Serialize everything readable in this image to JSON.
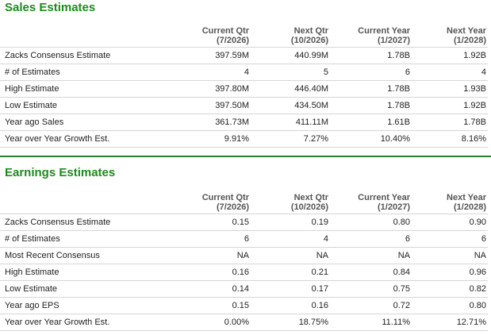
{
  "sales": {
    "title": "Sales Estimates",
    "columns": [
      {
        "line1": "Current Qtr",
        "line2": "(7/2026)"
      },
      {
        "line1": "Next Qtr",
        "line2": "(10/2026)"
      },
      {
        "line1": "Current Year",
        "line2": "(1/2027)"
      },
      {
        "line1": "Next Year",
        "line2": "(1/2028)"
      }
    ],
    "rows": [
      {
        "label": "Zacks Consensus Estimate",
        "values": [
          "397.59M",
          "440.99M",
          "1.78B",
          "1.92B"
        ]
      },
      {
        "label": "# of Estimates",
        "values": [
          "4",
          "5",
          "6",
          "4"
        ]
      },
      {
        "label": "High Estimate",
        "values": [
          "397.80M",
          "446.40M",
          "1.78B",
          "1.93B"
        ]
      },
      {
        "label": "Low Estimate",
        "values": [
          "397.50M",
          "434.50M",
          "1.78B",
          "1.92B"
        ]
      },
      {
        "label": "Year ago Sales",
        "values": [
          "361.73M",
          "411.11M",
          "1.61B",
          "1.78B"
        ]
      },
      {
        "label": "Year over Year Growth Est.",
        "values": [
          "9.91%",
          "7.27%",
          "10.40%",
          "8.16%"
        ]
      }
    ]
  },
  "earnings": {
    "title": "Earnings Estimates",
    "columns": [
      {
        "line1": "Current Qtr",
        "line2": "(7/2026)"
      },
      {
        "line1": "Next Qtr",
        "line2": "(10/2026)"
      },
      {
        "line1": "Current Year",
        "line2": "(1/2027)"
      },
      {
        "line1": "Next Year",
        "line2": "(1/2028)"
      }
    ],
    "rows": [
      {
        "label": "Zacks Consensus Estimate",
        "values": [
          "0.15",
          "0.19",
          "0.80",
          "0.90"
        ]
      },
      {
        "label": "# of Estimates",
        "values": [
          "6",
          "4",
          "6",
          "6"
        ]
      },
      {
        "label": "Most Recent Consensus",
        "values": [
          "NA",
          "NA",
          "NA",
          "NA"
        ]
      },
      {
        "label": "High Estimate",
        "values": [
          "0.16",
          "0.21",
          "0.84",
          "0.96"
        ]
      },
      {
        "label": "Low Estimate",
        "values": [
          "0.14",
          "0.17",
          "0.75",
          "0.82"
        ]
      },
      {
        "label": "Year ago EPS",
        "values": [
          "0.15",
          "0.16",
          "0.72",
          "0.80"
        ]
      },
      {
        "label": "Year over Year Growth Est.",
        "values": [
          "0.00%",
          "18.75%",
          "11.11%",
          "12.71%"
        ]
      }
    ]
  },
  "colors": {
    "title_green": "#1e8a1e",
    "divider_green": "#2e7d32",
    "row_border": "#d6d6d6",
    "header_text": "#555555"
  }
}
